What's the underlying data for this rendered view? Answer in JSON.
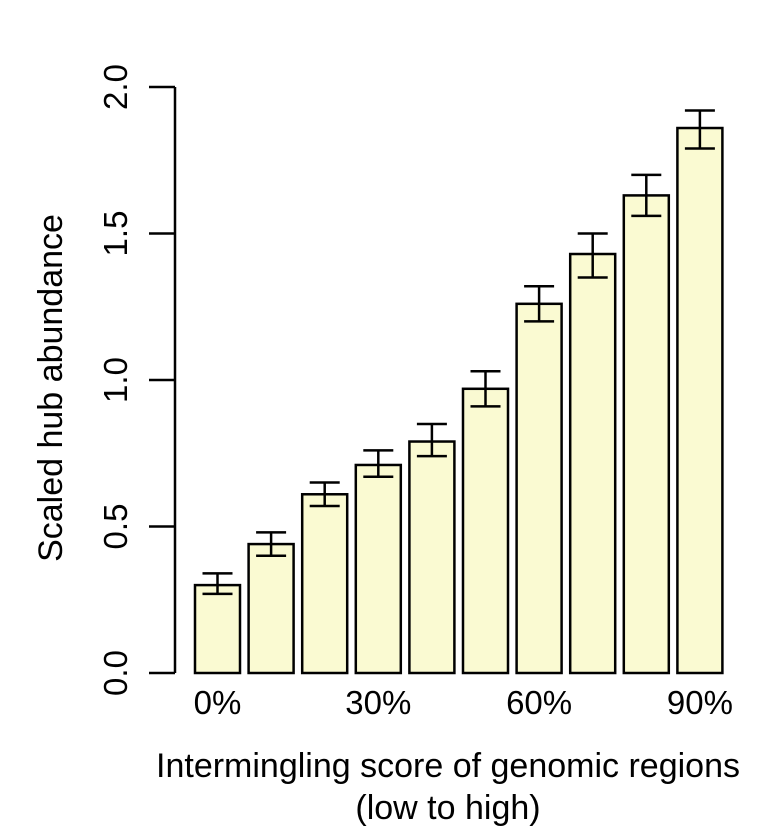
{
  "chart_data": {
    "type": "bar",
    "categories": [
      "0%",
      "10%",
      "20%",
      "30%",
      "40%",
      "50%",
      "60%",
      "70%",
      "80%",
      "90%"
    ],
    "x_tick_labels": [
      "0%",
      "30%",
      "60%",
      "90%"
    ],
    "values": [
      0.3,
      0.44,
      0.61,
      0.71,
      0.79,
      0.97,
      1.26,
      1.43,
      1.63,
      1.86
    ],
    "error_low": [
      0.27,
      0.4,
      0.57,
      0.67,
      0.74,
      0.91,
      1.2,
      1.35,
      1.56,
      1.79
    ],
    "error_high": [
      0.34,
      0.48,
      0.65,
      0.76,
      0.85,
      1.03,
      1.32,
      1.5,
      1.7,
      1.92
    ],
    "ylim": [
      0,
      2.0
    ],
    "yticks": [
      "0.0",
      "0.5",
      "1.0",
      "1.5",
      "2.0"
    ],
    "xlabel_line1": "Intermingling score of genomic regions",
    "xlabel_line2": "(low to high)",
    "ylabel": "Scaled hub abundance",
    "grid": false,
    "bar_color": "#fafad2",
    "bar_edge_color": "#000000"
  }
}
